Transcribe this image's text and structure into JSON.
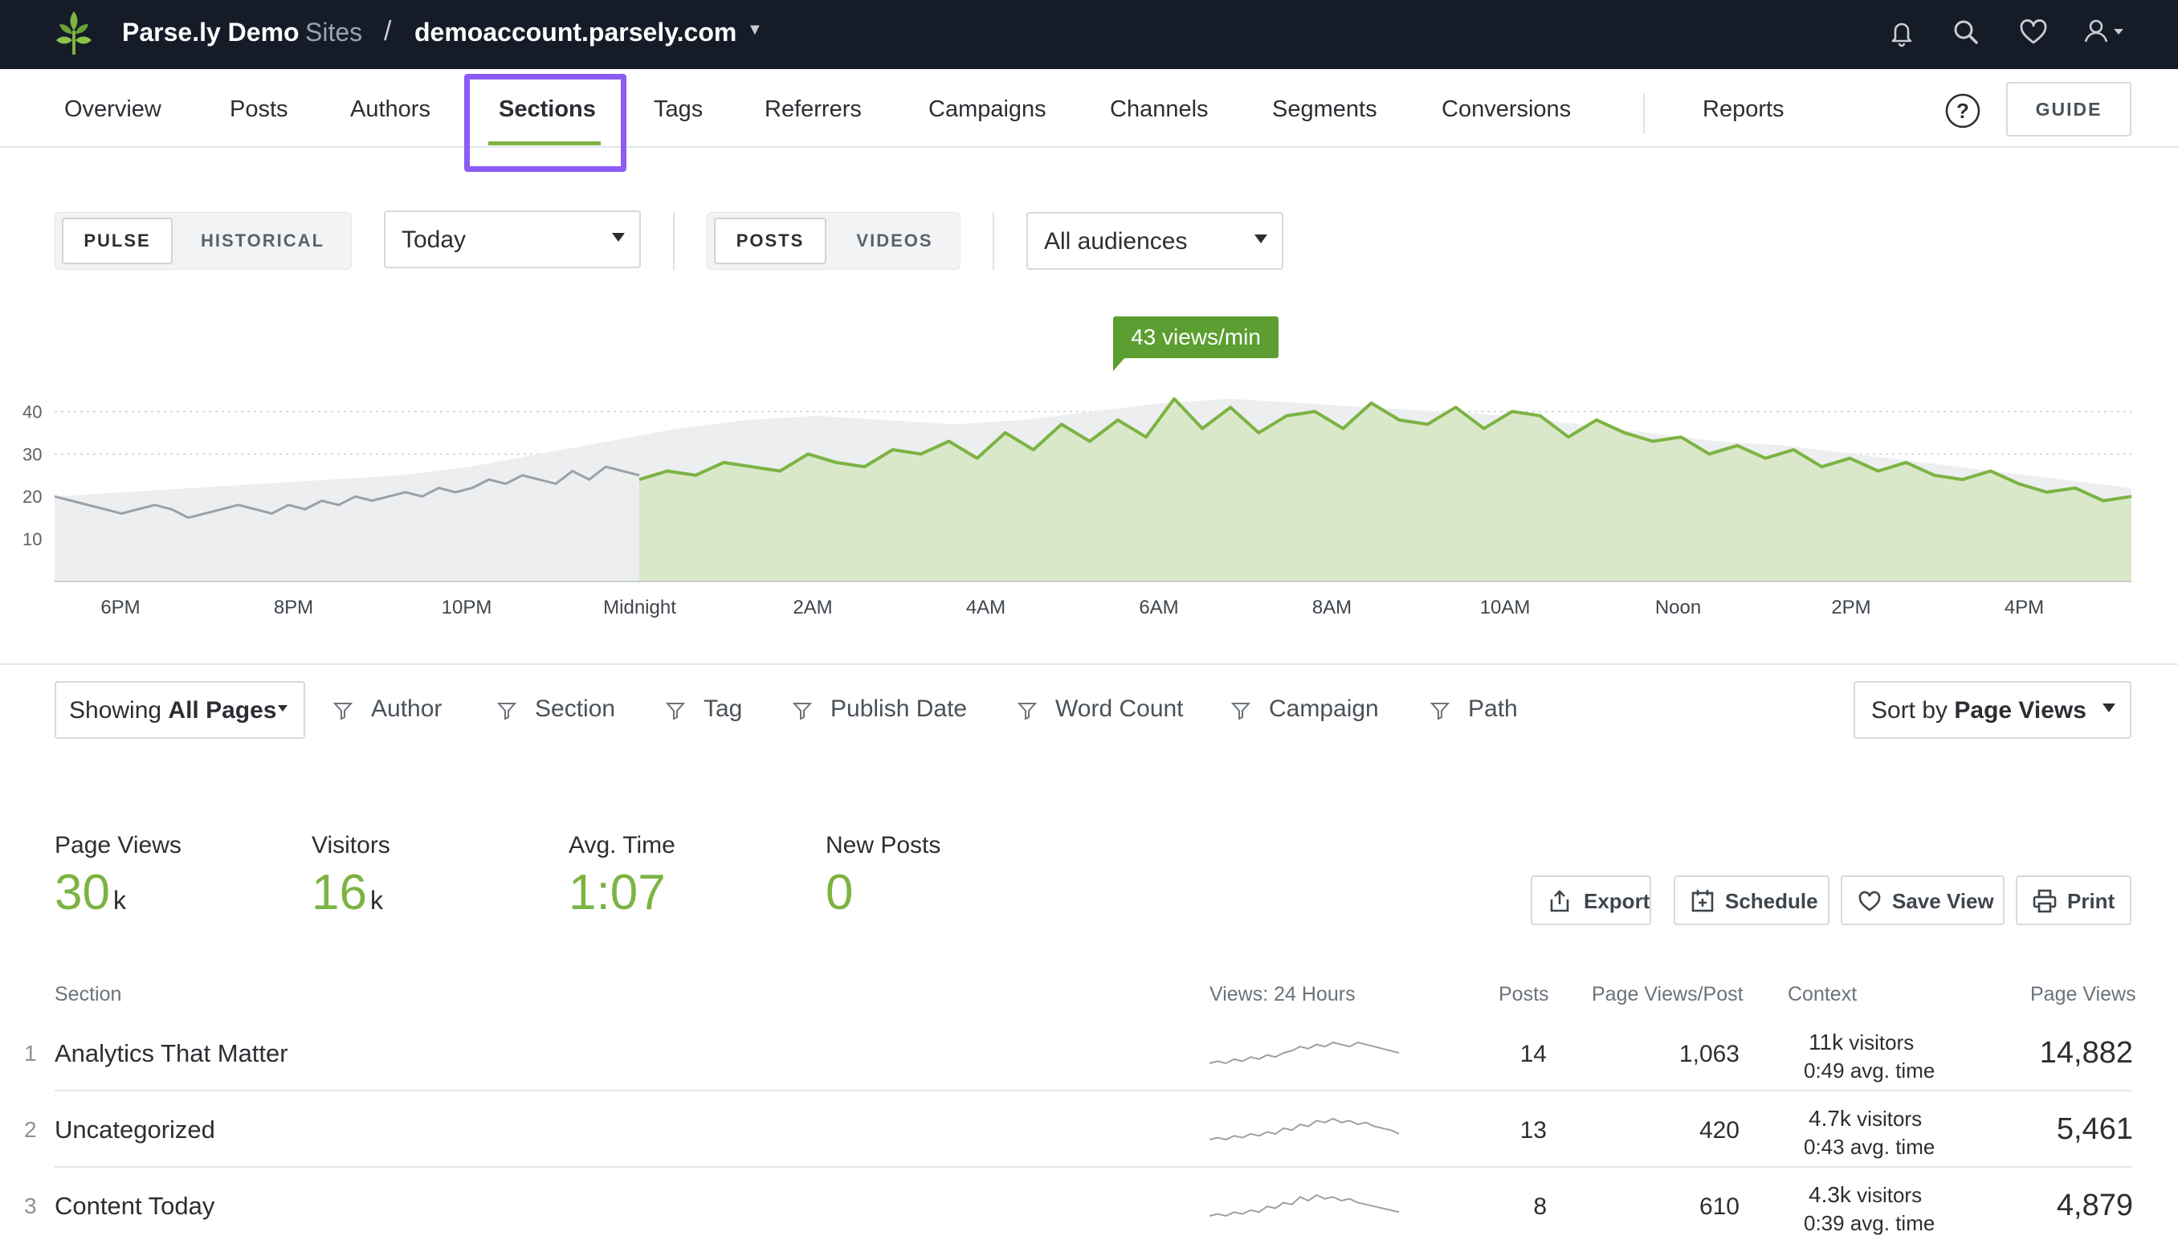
{
  "topbar": {
    "brand": "Parse.ly Demo",
    "sites_label": "Sites",
    "separator": "/",
    "domain": "demoaccount.parsely.com",
    "icons": [
      "bell-icon",
      "search-icon",
      "heart-icon",
      "user-icon"
    ]
  },
  "nav": {
    "items": [
      "Overview",
      "Posts",
      "Authors",
      "Sections",
      "Tags",
      "Referrers",
      "Campaigns",
      "Channels",
      "Segments",
      "Conversions"
    ],
    "active": "Sections",
    "reports": "Reports",
    "guide": "GUIDE"
  },
  "controls": {
    "pulse": "PULSE",
    "historical": "HISTORICAL",
    "period": "Today",
    "posts": "POSTS",
    "videos": "VIDEOS",
    "audience": "All audiences"
  },
  "chart_data": {
    "type": "area",
    "tooltip": "43 views/min",
    "yticks": [
      "10",
      "20",
      "30",
      "40"
    ],
    "ylim": [
      0,
      45
    ],
    "xticks": [
      "6PM",
      "8PM",
      "10PM",
      "Midnight",
      "2AM",
      "4AM",
      "6AM",
      "8AM",
      "10AM",
      "Noon",
      "2PM",
      "4PM"
    ],
    "grid": true,
    "colors": {
      "today": "#7cb342",
      "today_fill": "#d9e8c9",
      "past": "#9aa1a8",
      "past_fill": "#eceef0"
    },
    "series": [
      {
        "values": [
          20,
          19,
          18,
          17,
          16,
          17,
          18,
          17,
          15,
          16,
          17,
          18,
          17,
          16,
          18,
          17,
          19,
          18,
          20,
          19,
          20,
          21,
          20,
          22,
          21,
          22,
          24,
          23,
          25,
          24,
          23,
          26,
          24,
          27,
          26,
          25
        ]
      },
      {
        "values": [
          24,
          26,
          25,
          28,
          27,
          26,
          30,
          28,
          27,
          31,
          30,
          33,
          29,
          35,
          31,
          37,
          33,
          38,
          34,
          43,
          36,
          41,
          35,
          39,
          40,
          36,
          42,
          38,
          37,
          41,
          36,
          40,
          39,
          34,
          38,
          35,
          33,
          34,
          30,
          32,
          29,
          31,
          27,
          29,
          26,
          28,
          25,
          24,
          26,
          23,
          21,
          22,
          19,
          20
        ]
      },
      {
        "values": [
          20,
          21,
          22,
          23,
          24,
          25,
          27,
          30,
          33,
          36,
          38,
          39,
          38,
          37,
          38,
          40,
          42,
          43,
          42,
          41,
          40,
          39,
          37,
          35,
          33,
          32,
          30,
          28,
          26,
          24,
          22
        ]
      }
    ]
  },
  "filters": {
    "showing_prefix": "Showing",
    "showing_value": "All Pages",
    "items": [
      "Author",
      "Section",
      "Tag",
      "Publish Date",
      "Word Count",
      "Campaign",
      "Path"
    ],
    "sort_prefix": "Sort by",
    "sort_value": "Page Views"
  },
  "metrics": [
    {
      "label": "Page Views",
      "value": "30",
      "unit": "k"
    },
    {
      "label": "Visitors",
      "value": "16",
      "unit": "k"
    },
    {
      "label": "Avg. Time",
      "value": "1:07",
      "unit": ""
    },
    {
      "label": "New Posts",
      "value": "0",
      "unit": ""
    }
  ],
  "actions": [
    "Export",
    "Schedule",
    "Save View",
    "Print"
  ],
  "table": {
    "headers": [
      "Section",
      "Views: 24 Hours",
      "Posts",
      "Page Views/Post",
      "Context",
      "Page Views"
    ],
    "rows": [
      {
        "rank": "1",
        "name": "Analytics That Matter",
        "posts": "14",
        "pvpp": "1,063",
        "visitors": "11k",
        "visitors_label": "visitors",
        "avg": "0:49",
        "avg_label": "avg. time",
        "pv": "14,882",
        "spark": [
          4,
          5,
          4,
          6,
          5,
          7,
          6,
          8,
          7,
          9,
          10,
          12,
          11,
          13,
          12,
          14,
          13,
          12,
          14,
          13,
          12,
          11,
          10,
          9
        ]
      },
      {
        "rank": "2",
        "name": "Uncategorized",
        "posts": "13",
        "pvpp": "420",
        "visitors": "4.7k",
        "visitors_label": "visitors",
        "avg": "0:43",
        "avg_label": "avg. time",
        "pv": "5,461",
        "spark": [
          3,
          4,
          3,
          5,
          4,
          6,
          5,
          7,
          6,
          9,
          8,
          11,
          10,
          13,
          12,
          14,
          12,
          13,
          11,
          12,
          10,
          9,
          8,
          6
        ]
      },
      {
        "rank": "3",
        "name": "Content Today",
        "posts": "8",
        "pvpp": "610",
        "visitors": "4.3k",
        "visitors_label": "visitors",
        "avg": "0:39",
        "avg_label": "avg. time",
        "pv": "4,879",
        "spark": [
          2,
          3,
          2,
          4,
          3,
          5,
          4,
          7,
          6,
          9,
          8,
          12,
          10,
          13,
          11,
          12,
          10,
          11,
          9,
          8,
          7,
          6,
          5,
          4
        ]
      }
    ]
  }
}
